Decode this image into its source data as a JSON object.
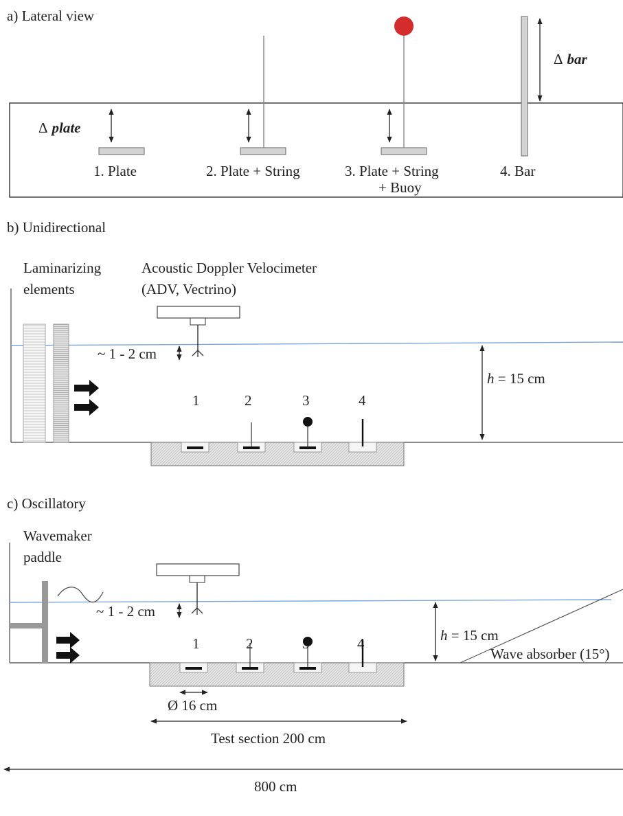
{
  "colors": {
    "water": "#7aa6d8",
    "buoy": "#d42b2b",
    "plate": "#d3d3d3",
    "sediment": "#e6e6e6",
    "paddle": "#999999"
  },
  "panel_a": {
    "title": "a) Lateral view",
    "delta_plate_symbol": "Δ",
    "delta_plate_word": "plate",
    "delta_bar_symbol": "Δ",
    "delta_bar_word": "bar",
    "labels": [
      "1. Plate",
      "2. Plate + String",
      "3. Plate + String",
      "+ Buoy",
      "4. Bar"
    ]
  },
  "panel_b": {
    "title": "b) Unidirectional",
    "lam_line1": "Laminarizing",
    "lam_line2": "elements",
    "adv_line1": "Acoustic Doppler Velocimeter",
    "adv_line2": "(ADV, Vectrino)",
    "gap": "~ 1 - 2 cm",
    "depth_var": "h",
    "depth_val": " = 15 cm",
    "numbers": [
      "1",
      "2",
      "3",
      "4"
    ]
  },
  "panel_c": {
    "title": "c) Oscillatory",
    "paddle_line1": "Wavemaker",
    "paddle_line2": "paddle",
    "gap": "~ 1 - 2 cm",
    "depth_var": "h",
    "depth_val": " = 15 cm",
    "absorber": "Wave absorber (15°)",
    "numbers": [
      "1",
      "2",
      "3",
      "4"
    ],
    "diameter": "Ø 16 cm",
    "test_section": "Test section 200 cm",
    "total_length": "800 cm"
  }
}
